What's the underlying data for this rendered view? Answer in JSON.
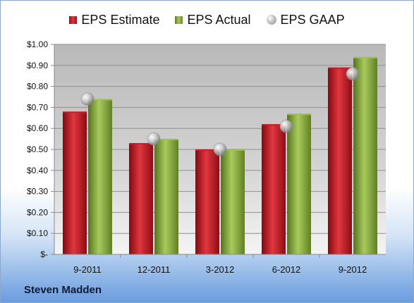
{
  "chart_data": {
    "type": "bar",
    "categories": [
      "9-2011",
      "12-2011",
      "3-2012",
      "6-2012",
      "9-2012"
    ],
    "series": [
      {
        "name": "EPS Estimate",
        "type": "bar",
        "color": "#c8202a",
        "values": [
          0.68,
          0.53,
          0.5,
          0.62,
          0.89
        ]
      },
      {
        "name": "EPS Actual",
        "type": "bar",
        "color": "#8fb23f",
        "values": [
          0.74,
          0.55,
          0.5,
          0.67,
          0.94
        ]
      },
      {
        "name": "EPS GAAP",
        "type": "scatter",
        "color": "#b0b0b0",
        "values": [
          0.74,
          0.55,
          0.5,
          0.61,
          0.86
        ]
      }
    ],
    "ylim": [
      0,
      1.0
    ],
    "yticks": [
      0,
      0.1,
      0.2,
      0.3,
      0.4,
      0.5,
      0.6,
      0.7,
      0.8,
      0.9,
      1.0
    ],
    "ytick_labels": [
      "$-",
      "$0.10",
      "$0.20",
      "$0.30",
      "$0.40",
      "$0.50",
      "$0.60",
      "$0.70",
      "$0.80",
      "$0.90",
      "$1.00"
    ],
    "grid": true,
    "legend": "top"
  },
  "legend": {
    "estimate": "EPS Estimate",
    "actual": "EPS Actual",
    "gaap": "EPS GAAP"
  },
  "footer": {
    "company": "Steven Madden"
  }
}
